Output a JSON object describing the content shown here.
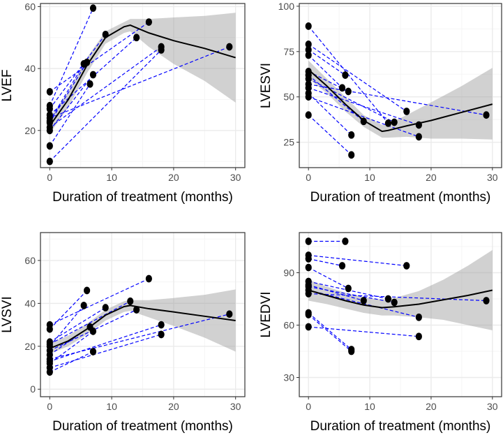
{
  "chart_data": [
    {
      "type": "scatter",
      "title": "",
      "xlabel": "Duration of treatment (months)",
      "ylabel": "LVEF",
      "xlim": [
        -1.5,
        31.5
      ],
      "ylim": [
        8.0,
        61.0
      ],
      "xticks": [
        0,
        10,
        20,
        30
      ],
      "yticks": [
        20,
        40,
        60
      ],
      "pairs": [
        [
          [
            0,
            32.5
          ],
          [
            16,
            55
          ]
        ],
        [
          [
            0,
            28
          ],
          [
            7,
            59.5
          ]
        ],
        [
          [
            0,
            27
          ],
          [
            9,
            51
          ]
        ],
        [
          [
            0,
            25
          ],
          [
            14,
            50
          ]
        ],
        [
          [
            0,
            23
          ],
          [
            5.5,
            41.5
          ]
        ],
        [
          [
            0,
            22.5
          ],
          [
            6,
            42
          ]
        ],
        [
          [
            0,
            20
          ],
          [
            7,
            38
          ]
        ],
        [
          [
            0,
            15
          ],
          [
            6.5,
            35
          ]
        ],
        [
          [
            0,
            10
          ],
          [
            18,
            46
          ]
        ],
        [
          [
            0,
            21
          ],
          [
            18,
            47
          ]
        ],
        [
          [
            0,
            24
          ],
          [
            29,
            47
          ]
        ]
      ],
      "smooth": [
        [
          0,
          21.5
        ],
        [
          3,
          30
        ],
        [
          6,
          41
        ],
        [
          9,
          50
        ],
        [
          12,
          53.5
        ],
        [
          13,
          54
        ],
        [
          16,
          51.5
        ],
        [
          20,
          49
        ],
        [
          25,
          46.5
        ],
        [
          30,
          43.5
        ]
      ],
      "band_upper": [
        [
          0,
          24
        ],
        [
          3,
          32.5
        ],
        [
          6,
          43.5
        ],
        [
          9,
          52
        ],
        [
          12,
          55
        ],
        [
          13,
          56
        ],
        [
          16,
          56
        ],
        [
          20,
          56.5
        ],
        [
          25,
          57
        ],
        [
          30,
          58
        ]
      ],
      "band_lower": [
        [
          0,
          19
        ],
        [
          3,
          27.5
        ],
        [
          6,
          38.5
        ],
        [
          9,
          48
        ],
        [
          12,
          51.5
        ],
        [
          13,
          52
        ],
        [
          16,
          47
        ],
        [
          20,
          41.5
        ],
        [
          25,
          36
        ],
        [
          30,
          29
        ]
      ]
    },
    {
      "type": "scatter",
      "title": "",
      "xlabel": "Duration of treatment (months)",
      "ylabel": "LVESVI",
      "xlim": [
        -1.5,
        31.5
      ],
      "ylim": [
        11.0,
        101.5
      ],
      "xticks": [
        0,
        10,
        20,
        30
      ],
      "yticks": [
        25,
        50,
        75,
        100
      ],
      "pairs": [
        [
          [
            0,
            89
          ],
          [
            13,
            35.5
          ]
        ],
        [
          [
            0,
            79
          ],
          [
            16,
            42
          ]
        ],
        [
          [
            0,
            76
          ],
          [
            6,
            62
          ]
        ],
        [
          [
            0,
            73
          ],
          [
            5.5,
            55
          ]
        ],
        [
          [
            0,
            64
          ],
          [
            6.5,
            53
          ]
        ],
        [
          [
            0,
            62
          ],
          [
            9,
            36.5
          ]
        ],
        [
          [
            0,
            60
          ],
          [
            14,
            36
          ]
        ],
        [
          [
            0,
            57
          ],
          [
            29,
            40
          ]
        ],
        [
          [
            0,
            55
          ],
          [
            18,
            34.5
          ]
        ],
        [
          [
            0,
            52
          ],
          [
            7,
            29
          ]
        ],
        [
          [
            0,
            50
          ],
          [
            18,
            28
          ]
        ],
        [
          [
            0,
            40
          ],
          [
            7,
            18
          ]
        ]
      ],
      "smooth": [
        [
          0,
          65
        ],
        [
          3,
          56
        ],
        [
          6,
          46
        ],
        [
          9,
          37
        ],
        [
          12,
          31
        ],
        [
          13,
          31.5
        ],
        [
          16,
          34
        ],
        [
          20,
          37
        ],
        [
          25,
          41.5
        ],
        [
          30,
          46
        ]
      ],
      "band_upper": [
        [
          0,
          70
        ],
        [
          3,
          60
        ],
        [
          6,
          50
        ],
        [
          9,
          40
        ],
        [
          12,
          34.5
        ],
        [
          13,
          35
        ],
        [
          16,
          40
        ],
        [
          20,
          47
        ],
        [
          25,
          56
        ],
        [
          30,
          66
        ]
      ],
      "band_lower": [
        [
          0,
          60
        ],
        [
          3,
          52
        ],
        [
          6,
          42
        ],
        [
          9,
          33.5
        ],
        [
          12,
          27.5
        ],
        [
          13,
          27.5
        ],
        [
          16,
          28
        ],
        [
          20,
          27
        ],
        [
          25,
          27
        ],
        [
          30,
          26.5
        ]
      ]
    },
    {
      "type": "scatter",
      "title": "",
      "xlabel": "Duration of treatment (months)",
      "ylabel": "LVSVI",
      "xlim": [
        -1.5,
        31.5
      ],
      "ylim": [
        -3.5,
        73.0
      ],
      "xticks": [
        0,
        10,
        20,
        30
      ],
      "yticks": [
        0,
        20,
        40,
        60
      ],
      "pairs": [
        [
          [
            0,
            30
          ],
          [
            16,
            51.5
          ]
        ],
        [
          [
            0,
            28
          ],
          [
            6,
            46
          ]
        ],
        [
          [
            0,
            22
          ],
          [
            9,
            38
          ]
        ],
        [
          [
            0,
            21
          ],
          [
            13,
            41
          ]
        ],
        [
          [
            0,
            20
          ],
          [
            5.5,
            39
          ]
        ],
        [
          [
            0,
            18
          ],
          [
            14,
            37
          ]
        ],
        [
          [
            0,
            16
          ],
          [
            6.5,
            29
          ]
        ],
        [
          [
            0,
            14
          ],
          [
            29,
            35
          ]
        ],
        [
          [
            0,
            13
          ],
          [
            18,
            30
          ]
        ],
        [
          [
            0,
            12
          ],
          [
            7,
            27
          ]
        ],
        [
          [
            0,
            10
          ],
          [
            18,
            25.5
          ]
        ],
        [
          [
            0,
            8
          ],
          [
            7,
            17.5
          ]
        ]
      ],
      "smooth": [
        [
          0,
          19
        ],
        [
          3,
          22.5
        ],
        [
          6,
          28
        ],
        [
          9,
          34.5
        ],
        [
          12,
          38.5
        ],
        [
          13,
          39
        ],
        [
          16,
          37.5
        ],
        [
          20,
          36
        ],
        [
          25,
          34
        ],
        [
          30,
          32
        ]
      ],
      "band_upper": [
        [
          0,
          21.5
        ],
        [
          3,
          25
        ],
        [
          6,
          30.5
        ],
        [
          9,
          37
        ],
        [
          12,
          41
        ],
        [
          13,
          41.5
        ],
        [
          16,
          41.5
        ],
        [
          20,
          42.5
        ],
        [
          25,
          44
        ],
        [
          30,
          46.5
        ]
      ],
      "band_lower": [
        [
          0,
          16.5
        ],
        [
          3,
          20
        ],
        [
          6,
          25.5
        ],
        [
          9,
          32
        ],
        [
          12,
          36
        ],
        [
          13,
          36.5
        ],
        [
          16,
          33.5
        ],
        [
          20,
          29.5
        ],
        [
          25,
          24
        ],
        [
          30,
          17.5
        ]
      ]
    },
    {
      "type": "scatter",
      "title": "",
      "xlabel": "Duration of treatment (months)",
      "ylabel": "LVEDVI",
      "xlim": [
        -1.5,
        31.5
      ],
      "ylim": [
        19.0,
        113.0
      ],
      "xticks": [
        0,
        10,
        20,
        30
      ],
      "yticks": [
        30,
        60,
        90
      ],
      "pairs": [
        [
          [
            0,
            108
          ],
          [
            6,
            108
          ]
        ],
        [
          [
            0,
            100
          ],
          [
            16,
            94
          ]
        ],
        [
          [
            0,
            98
          ],
          [
            5.5,
            94
          ]
        ],
        [
          [
            0,
            93
          ],
          [
            6.5,
            81
          ]
        ],
        [
          [
            0,
            85
          ],
          [
            13,
            75
          ]
        ],
        [
          [
            0,
            83
          ],
          [
            9,
            74
          ]
        ],
        [
          [
            0,
            82
          ],
          [
            14,
            73
          ]
        ],
        [
          [
            0,
            80
          ],
          [
            18,
            64.5
          ]
        ],
        [
          [
            0,
            78
          ],
          [
            29,
            74
          ]
        ],
        [
          [
            0,
            67
          ],
          [
            7,
            46
          ]
        ],
        [
          [
            0,
            66
          ],
          [
            7,
            45
          ]
        ],
        [
          [
            0,
            59
          ],
          [
            18,
            53.5
          ]
        ]
      ],
      "smooth": [
        [
          0,
          80
        ],
        [
          3,
          77
        ],
        [
          6,
          74
        ],
        [
          9,
          71.5
        ],
        [
          12,
          70
        ],
        [
          14,
          70.5
        ],
        [
          18,
          72
        ],
        [
          22,
          74.5
        ],
        [
          26,
          77
        ],
        [
          30,
          80
        ]
      ],
      "band_upper": [
        [
          0,
          86
        ],
        [
          3,
          82
        ],
        [
          6,
          78.5
        ],
        [
          9,
          76
        ],
        [
          12,
          74.5
        ],
        [
          14,
          75.5
        ],
        [
          18,
          79.5
        ],
        [
          22,
          86
        ],
        [
          26,
          94
        ],
        [
          30,
          103
        ]
      ],
      "band_lower": [
        [
          0,
          74
        ],
        [
          3,
          72
        ],
        [
          6,
          69.5
        ],
        [
          9,
          67
        ],
        [
          12,
          65.5
        ],
        [
          14,
          65.5
        ],
        [
          18,
          64.5
        ],
        [
          22,
          63
        ],
        [
          26,
          60
        ],
        [
          30,
          57
        ]
      ]
    }
  ],
  "colors": {
    "panel_bg": "#ffffff",
    "panel_border": "#333333",
    "grid_major": "#ebebeb",
    "grid_minor": "#f5f5f5",
    "band": "#999999",
    "smooth": "#000000",
    "pair_line": "#0000ff",
    "point": "#000000",
    "tick_text": "#4d4d4d"
  }
}
